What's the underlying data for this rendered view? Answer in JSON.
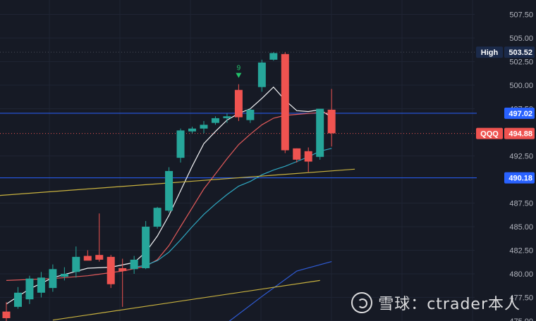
{
  "chart_data": {
    "type": "candlestick",
    "symbol": "QQQ",
    "last_price": "494.88",
    "high_label": "High",
    "high_value": "503.52",
    "level_upper": "497.02",
    "level_lower": "490.18",
    "ylim": [
      475,
      509
    ],
    "y_ticks": [
      "507.50",
      "505.00",
      "502.50",
      "500.00",
      "497.50",
      "492.50",
      "487.50",
      "485.00",
      "482.50",
      "480.00",
      "477.50",
      "475.00"
    ],
    "candles": [
      {
        "o": 476.0,
        "h": 477.0,
        "l": 474.8,
        "c": 475.3
      },
      {
        "o": 476.5,
        "h": 478.6,
        "l": 476.3,
        "c": 478.0
      },
      {
        "o": 477.3,
        "h": 479.8,
        "l": 476.8,
        "c": 479.5
      },
      {
        "o": 478.0,
        "h": 480.2,
        "l": 477.5,
        "c": 479.6
      },
      {
        "o": 478.5,
        "h": 481.0,
        "l": 478.1,
        "c": 480.5
      },
      {
        "o": 479.7,
        "h": 480.7,
        "l": 479.3,
        "c": 480.0
      },
      {
        "o": 480.2,
        "h": 482.9,
        "l": 479.6,
        "c": 481.8
      },
      {
        "o": 481.9,
        "h": 482.5,
        "l": 481.5,
        "c": 481.4
      },
      {
        "o": 482.0,
        "h": 486.4,
        "l": 481.3,
        "c": 481.5
      },
      {
        "o": 481.8,
        "h": 482.0,
        "l": 478.5,
        "c": 478.9
      },
      {
        "o": 480.6,
        "h": 481.6,
        "l": 476.5,
        "c": 480.3
      },
      {
        "o": 480.5,
        "h": 481.9,
        "l": 480.0,
        "c": 481.5
      },
      {
        "o": 480.6,
        "h": 485.6,
        "l": 480.5,
        "c": 485.0
      },
      {
        "o": 485.0,
        "h": 487.1,
        "l": 484.8,
        "c": 487.0
      },
      {
        "o": 486.7,
        "h": 491.3,
        "l": 486.5,
        "c": 490.9
      },
      {
        "o": 492.3,
        "h": 495.4,
        "l": 491.8,
        "c": 495.2
      },
      {
        "o": 495.1,
        "h": 495.6,
        "l": 494.9,
        "c": 495.4
      },
      {
        "o": 495.4,
        "h": 496.2,
        "l": 494.9,
        "c": 495.8
      },
      {
        "o": 496.0,
        "h": 496.7,
        "l": 495.8,
        "c": 496.5
      },
      {
        "o": 496.5,
        "h": 497.0,
        "l": 496.0,
        "c": 496.7
      },
      {
        "o": 499.5,
        "h": 500.1,
        "l": 496.2,
        "c": 496.6
      },
      {
        "o": 496.3,
        "h": 497.5,
        "l": 496.0,
        "c": 497.4
      },
      {
        "o": 499.8,
        "h": 502.7,
        "l": 499.3,
        "c": 502.4
      },
      {
        "o": 502.7,
        "h": 503.5,
        "l": 502.6,
        "c": 503.4
      },
      {
        "o": 503.3,
        "h": 503.5,
        "l": 492.8,
        "c": 493.1
      },
      {
        "o": 493.3,
        "h": 493.3,
        "l": 491.8,
        "c": 492.1
      },
      {
        "o": 493.0,
        "h": 493.4,
        "l": 490.8,
        "c": 491.9
      },
      {
        "o": 492.4,
        "h": 497.5,
        "l": 492.1,
        "c": 497.5
      },
      {
        "o": 497.4,
        "h": 499.6,
        "l": 493.5,
        "c": 494.9
      }
    ],
    "series": [
      {
        "color": "#f2f3f5",
        "values": [
          [
            0,
            476.8
          ],
          [
            2,
            478.4
          ],
          [
            4,
            479.6
          ],
          [
            7,
            480.6
          ],
          [
            9,
            480.7
          ],
          [
            11,
            481.2
          ],
          [
            12,
            482.3
          ],
          [
            13,
            484.0
          ],
          [
            14,
            486.2
          ],
          [
            15,
            488.8
          ],
          [
            16,
            491.4
          ],
          [
            17,
            493.8
          ],
          [
            18,
            495.1
          ],
          [
            19,
            496.3
          ],
          [
            20,
            497.0
          ],
          [
            21,
            497.5
          ],
          [
            22,
            498.6
          ],
          [
            23,
            499.8
          ],
          [
            24,
            498.4
          ],
          [
            25,
            497.3
          ],
          [
            26,
            497.2
          ],
          [
            27,
            497.4
          ],
          [
            28,
            496.6
          ]
        ]
      },
      {
        "color": "#e25a5a",
        "values": [
          [
            0,
            479.3
          ],
          [
            4,
            479.5
          ],
          [
            7,
            479.8
          ],
          [
            10,
            480.3
          ],
          [
            12,
            480.8
          ],
          [
            13,
            481.5
          ],
          [
            14,
            483.0
          ],
          [
            15,
            485.0
          ],
          [
            16,
            487.0
          ],
          [
            17,
            489.0
          ],
          [
            18,
            490.6
          ],
          [
            19,
            492.2
          ],
          [
            20,
            493.7
          ],
          [
            21,
            494.8
          ],
          [
            22,
            495.8
          ],
          [
            23,
            496.5
          ],
          [
            24,
            496.8
          ],
          [
            25,
            496.9
          ],
          [
            26,
            497.0
          ],
          [
            27,
            497.1
          ],
          [
            28,
            497.0
          ]
        ]
      },
      {
        "color": "#2fa8c2",
        "values": [
          [
            11,
            480.7
          ],
          [
            12,
            480.9
          ],
          [
            13,
            481.4
          ],
          [
            14,
            482.3
          ],
          [
            15,
            483.6
          ],
          [
            16,
            485.0
          ],
          [
            17,
            486.3
          ],
          [
            18,
            487.4
          ],
          [
            19,
            488.4
          ],
          [
            20,
            489.3
          ],
          [
            21,
            489.8
          ],
          [
            22,
            490.5
          ],
          [
            23,
            491.0
          ],
          [
            24,
            491.4
          ],
          [
            25,
            491.9
          ],
          [
            26,
            492.4
          ],
          [
            27,
            493.0
          ],
          [
            28,
            493.3
          ]
        ]
      },
      {
        "color": "#2f5bd4",
        "values": [
          [
            19,
            474.8
          ],
          [
            22,
            477.6
          ],
          [
            25,
            480.3
          ],
          [
            28,
            481.3
          ]
        ]
      },
      {
        "color": "#c9b23f",
        "values": [
          [
            -5,
            487.9
          ],
          [
            30,
            491.1
          ]
        ]
      },
      {
        "color": "#c9b23f",
        "values": [
          [
            4,
            475.1
          ],
          [
            27,
            479.3
          ]
        ]
      }
    ],
    "horizontal_lines": [
      {
        "y": 503.5,
        "color": "#4a4e5a",
        "style": "dotted"
      },
      {
        "y": 497.02,
        "color": "#2962ff",
        "style": "solid"
      },
      {
        "y": 494.88,
        "color": "#ef5350",
        "style": "dotted"
      },
      {
        "y": 490.18,
        "color": "#2962ff",
        "style": "solid"
      }
    ],
    "marker": {
      "index": 20,
      "label": "9",
      "color": "#22c36b"
    },
    "colors": {
      "up": "#26a69a",
      "down": "#ef5350",
      "grid": "#1f2433"
    }
  },
  "watermark": {
    "text": "雪球：ctrader本人"
  }
}
